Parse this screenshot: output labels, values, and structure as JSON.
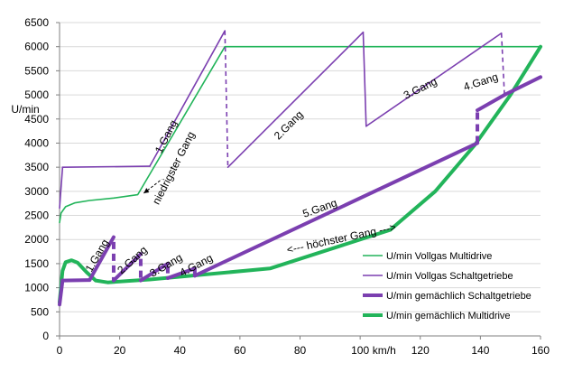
{
  "chart_data": {
    "type": "line",
    "ylabel": "U/min",
    "xlabel": "km/h",
    "xlim": [
      0,
      160
    ],
    "ylim": [
      0,
      6500
    ],
    "x_ticks": [
      "0",
      "20",
      "40",
      "60",
      "80",
      "100",
      "120",
      "140",
      "160"
    ],
    "y_ticks": [
      "0",
      "500",
      "1000",
      "1500",
      "2000",
      "2500",
      "3000",
      "3500",
      "4000",
      "4500",
      "5000",
      "5500",
      "6000",
      "6500"
    ],
    "grid": true,
    "legend_position": "lower-right",
    "series": [
      {
        "name": "U/min Vollgas Multidrive",
        "color": "#22b45a",
        "weight": "thin",
        "points": [
          [
            0,
            2350
          ],
          [
            0.5,
            2550
          ],
          [
            2,
            2680
          ],
          [
            5,
            2760
          ],
          [
            10,
            2810
          ],
          [
            18,
            2860
          ],
          [
            26,
            2930
          ],
          [
            55,
            6000
          ],
          [
            160,
            6000
          ]
        ]
      },
      {
        "name": "U/min Vollgas Schaltgetriebe",
        "color": "#7b3fb0",
        "weight": "thin",
        "points": [
          [
            0,
            2650
          ],
          [
            1,
            3500
          ],
          [
            30,
            3520
          ],
          [
            55,
            6330
          ],
          [
            56,
            3500
          ],
          [
            101,
            6300
          ],
          [
            102,
            4350
          ],
          [
            147,
            6280
          ],
          [
            148,
            5000
          ]
        ],
        "dashed_segments": [
          [
            [
              55,
              6330
            ],
            [
              56,
              3500
            ]
          ],
          [
            [
              147,
              6280
            ],
            [
              148,
              5000
            ]
          ]
        ]
      },
      {
        "name": "U/min gemächlich Schaltgetriebe",
        "color": "#7b3fb0",
        "weight": "thick",
        "points": [
          [
            0,
            650
          ],
          [
            1,
            1150
          ],
          [
            10,
            1160
          ],
          [
            18,
            2050
          ],
          [
            18,
            1150
          ],
          [
            27,
            1700
          ],
          [
            27,
            1150
          ],
          [
            36,
            1500
          ],
          [
            36,
            1200
          ],
          [
            45,
            1400
          ],
          [
            45,
            1250
          ],
          [
            139,
            4000
          ],
          [
            139,
            4680
          ],
          [
            148,
            5000
          ],
          [
            160,
            5370
          ]
        ],
        "dashed_segments": [
          [
            [
              18,
              1950
            ],
            [
              18,
              1150
            ]
          ],
          [
            [
              27,
              1600
            ],
            [
              27,
              1150
            ]
          ],
          [
            [
              36,
              1450
            ],
            [
              36,
              1200
            ]
          ],
          [
            [
              139,
              4000
            ],
            [
              139,
              4680
            ]
          ]
        ]
      },
      {
        "name": "U/min gemächlich Multidrive",
        "color": "#22b45a",
        "weight": "thick",
        "points": [
          [
            0,
            700
          ],
          [
            1,
            1350
          ],
          [
            2,
            1530
          ],
          [
            4,
            1570
          ],
          [
            6,
            1520
          ],
          [
            9,
            1320
          ],
          [
            12,
            1150
          ],
          [
            16,
            1110
          ],
          [
            30,
            1170
          ],
          [
            70,
            1400
          ],
          [
            110,
            2200
          ],
          [
            125,
            3000
          ],
          [
            138,
            3950
          ],
          [
            150,
            5000
          ],
          [
            160,
            6000
          ]
        ]
      }
    ],
    "annotations": [
      "1.Gang",
      "niedrigster Gang",
      "2.Gang",
      "3.Gang",
      "4.Gang",
      "5.Gang",
      "höchster Gang",
      "1.Gang",
      "2.Gang",
      "3.Gang",
      "4.Gang"
    ]
  }
}
